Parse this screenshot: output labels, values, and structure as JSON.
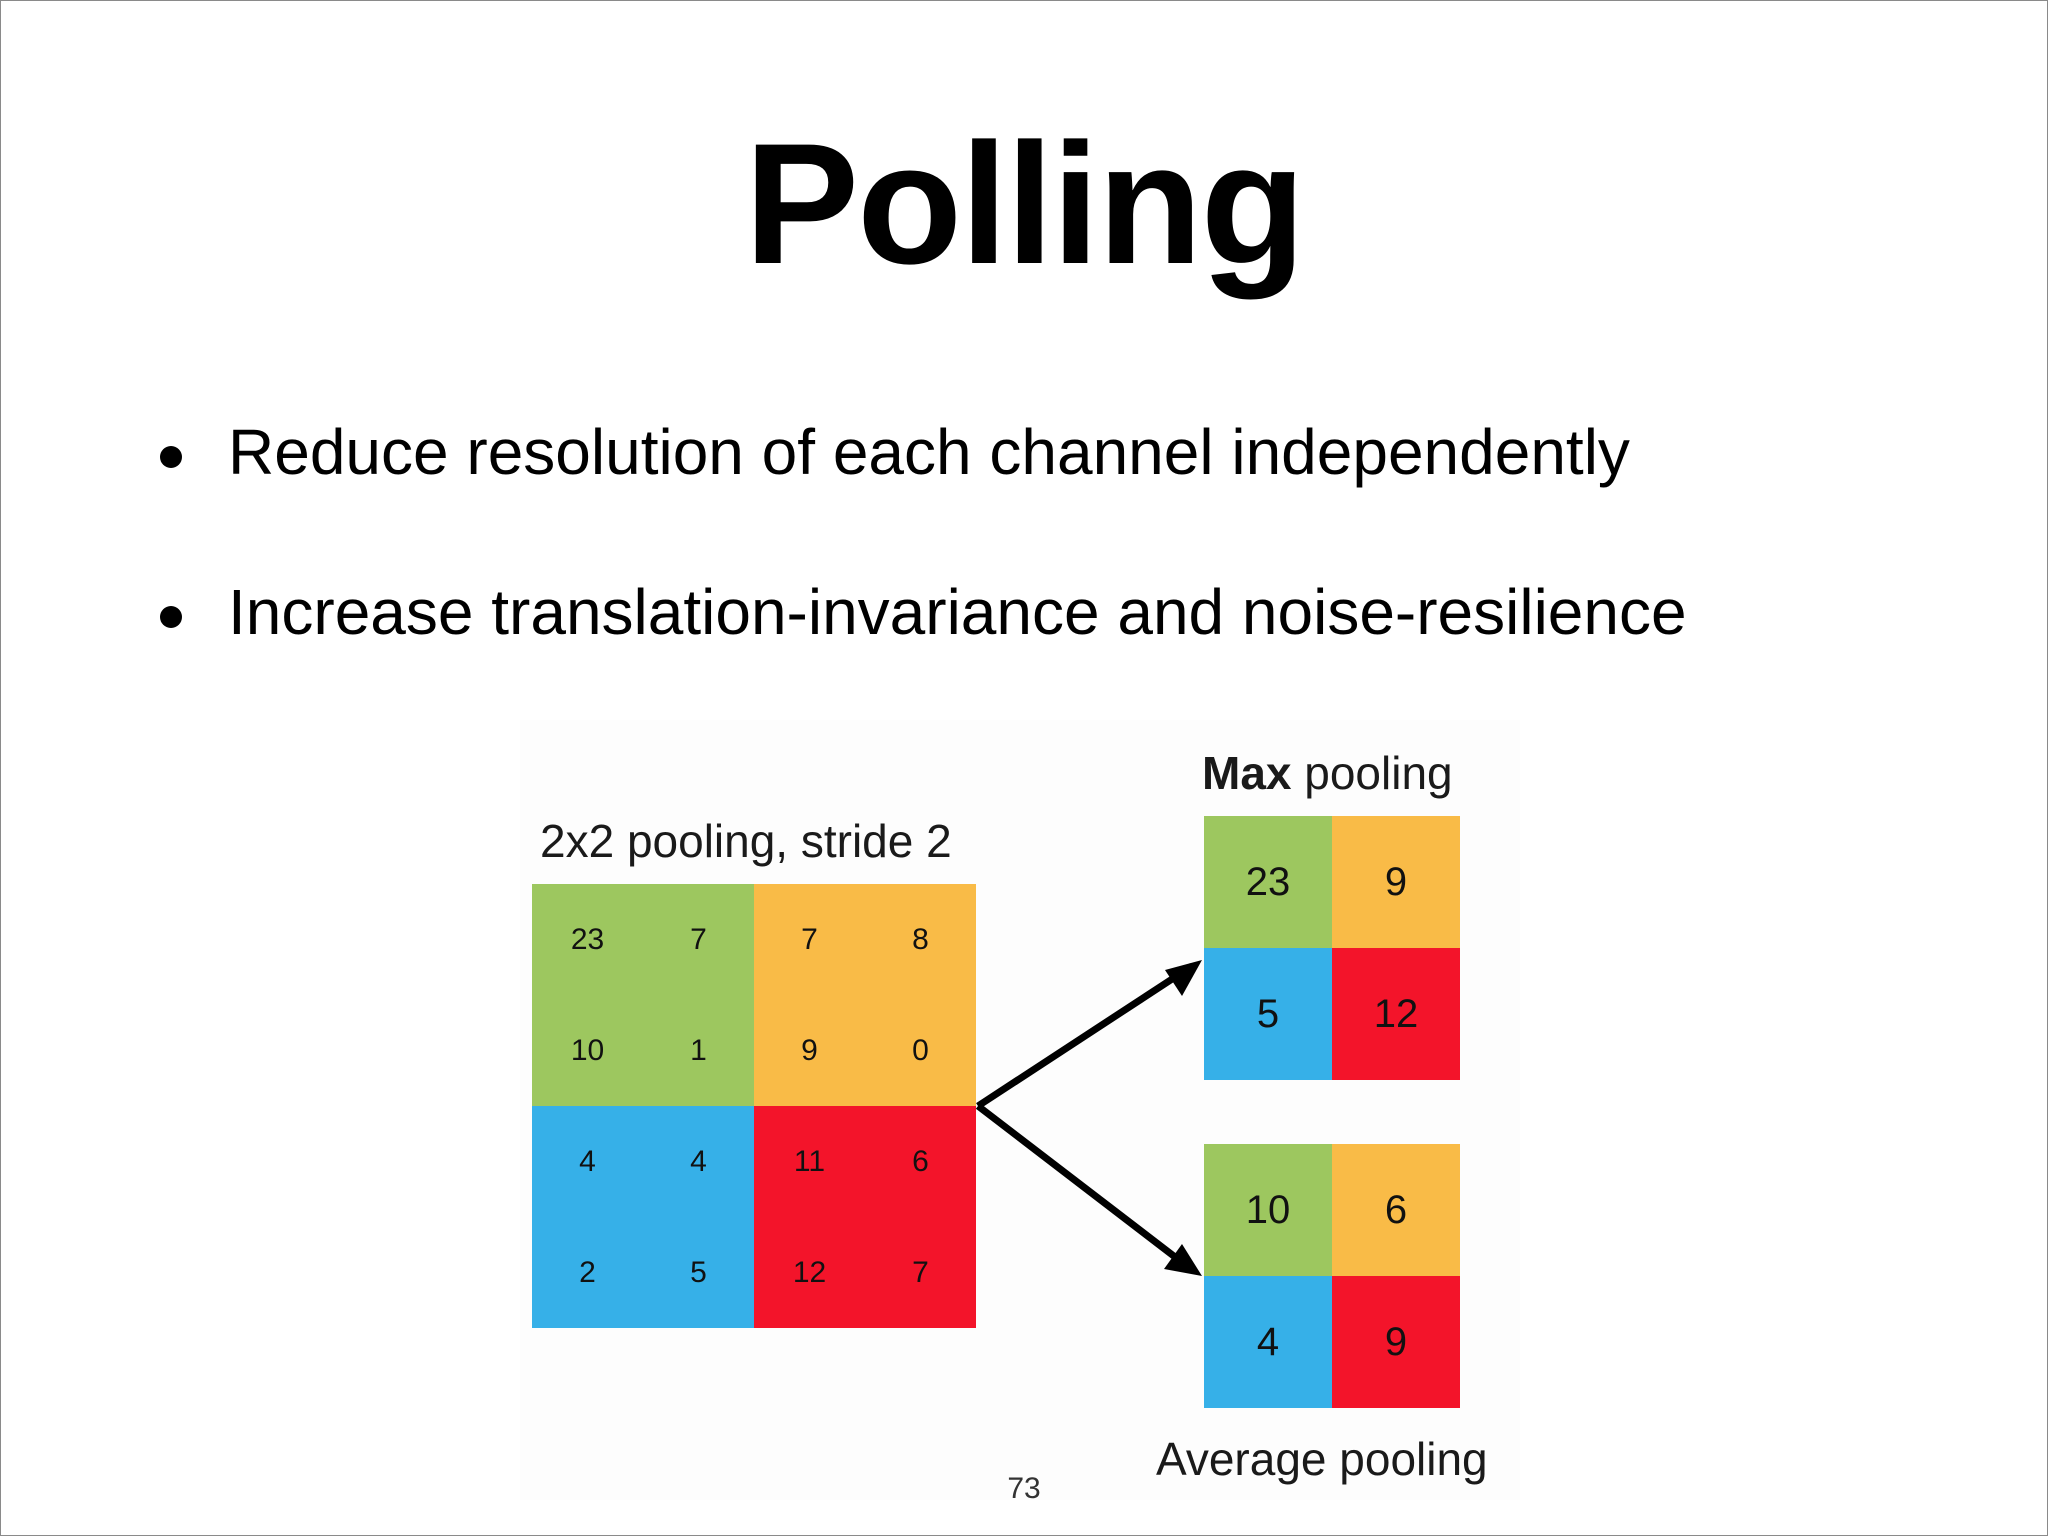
{
  "slide": {
    "title": "Polling",
    "bullets": [
      "Reduce resolution of each channel independently",
      "Increase translation-invariance and noise-resilience"
    ],
    "page_number": "73"
  },
  "figure": {
    "input_label": "2x2 pooling, stride 2",
    "max_label_bold": "Max",
    "max_label_rest": " pooling",
    "avg_label": "Average pooling",
    "input_grid": [
      [
        "23",
        "7",
        "7",
        "8"
      ],
      [
        "10",
        "1",
        "9",
        "0"
      ],
      [
        "4",
        "4",
        "11",
        "6"
      ],
      [
        "2",
        "5",
        "12",
        "7"
      ]
    ],
    "max_pooled": [
      [
        "23",
        "9"
      ],
      [
        "5",
        "12"
      ]
    ],
    "avg_pooled": [
      [
        "10",
        "6"
      ],
      [
        "4",
        "9"
      ]
    ],
    "colors": {
      "green": "#9dc75f",
      "orange": "#f9bb47",
      "blue": "#36b0e8",
      "red": "#f3142a",
      "green_dark": "#99c45c",
      "orange_dark": "#f6b542",
      "blue_dark": "#33abe2",
      "red_dark": "#ee1227",
      "arrow": "#000000"
    }
  }
}
